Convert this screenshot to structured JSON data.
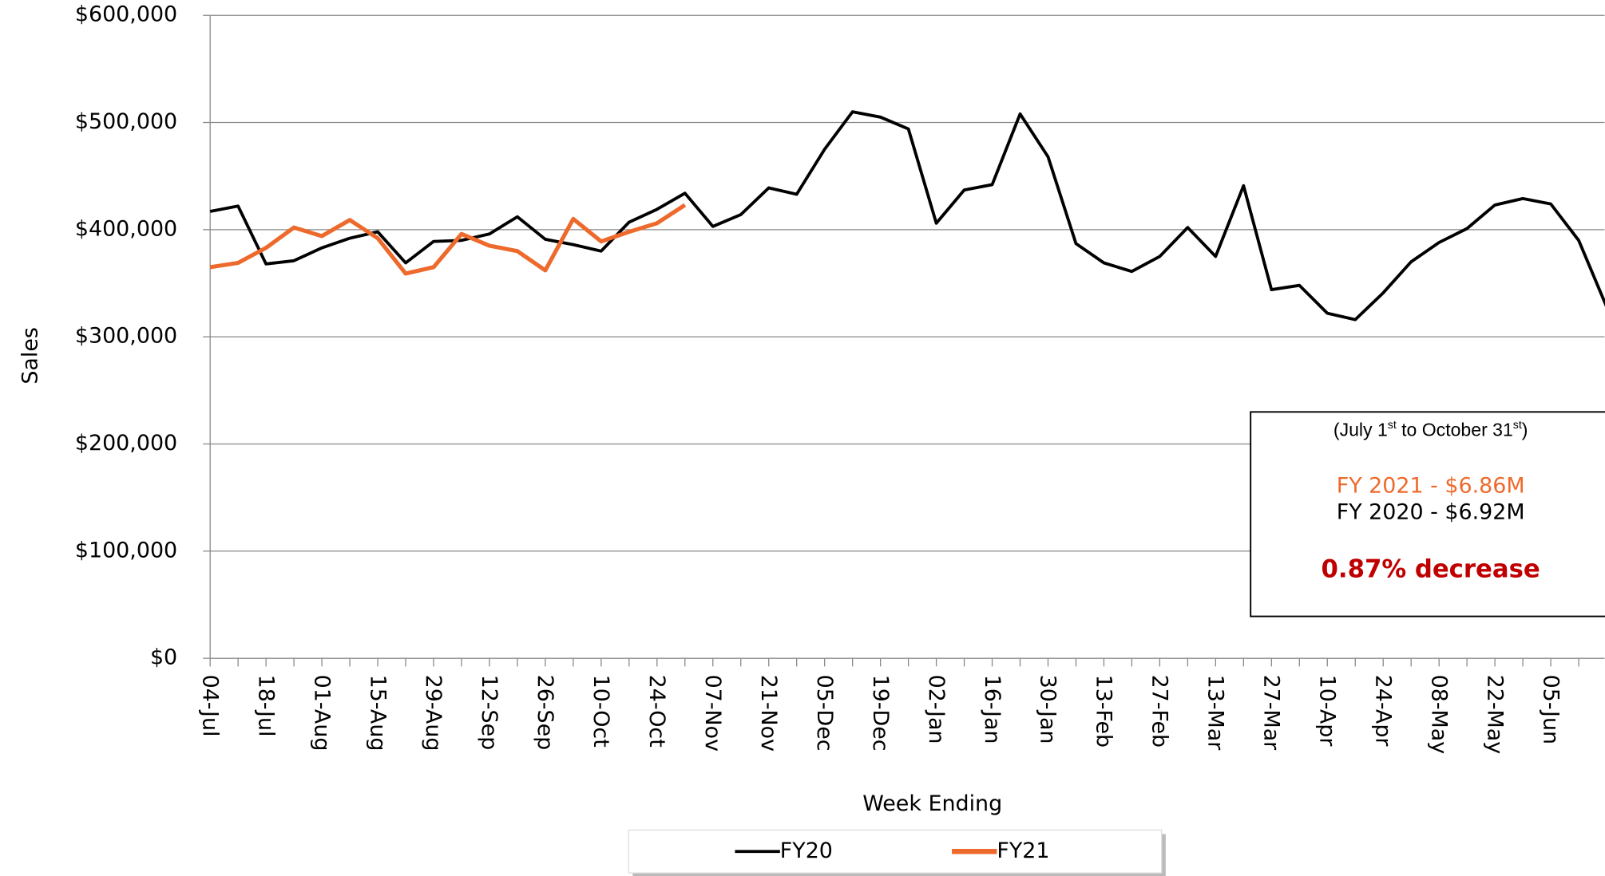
{
  "chart_data": {
    "type": "line",
    "x_label": "Week Ending",
    "y_label": "Sales",
    "categories": [
      "04-Jul",
      null,
      "18-Jul",
      null,
      "01-Aug",
      null,
      "15-Aug",
      null,
      "29-Aug",
      null,
      "12-Sep",
      null,
      "26-Sep",
      null,
      "10-Oct",
      null,
      "24-Oct",
      null,
      "07-Nov",
      null,
      "21-Nov",
      null,
      "05-Dec",
      null,
      "19-Dec",
      null,
      "02-Jan",
      null,
      "16-Jan",
      null,
      "30-Jan",
      null,
      "13-Feb",
      null,
      "27-Feb",
      null,
      "13-Mar",
      null,
      "27-Mar",
      null,
      "10-Apr",
      null,
      "24-Apr",
      null,
      "08-May",
      null,
      "22-May",
      null,
      "05-Jun",
      null,
      null
    ],
    "series": [
      {
        "name": "FY20",
        "color": "#000000",
        "values": [
          417000,
          422000,
          368000,
          371000,
          383000,
          392000,
          398000,
          369000,
          389000,
          390000,
          396000,
          412000,
          391000,
          386000,
          380000,
          407000,
          419000,
          434000,
          403000,
          414000,
          439000,
          433000,
          475000,
          510000,
          505000,
          494000,
          406000,
          437000,
          442000,
          508000,
          468000,
          387000,
          369000,
          361000,
          375000,
          402000,
          375000,
          441000,
          344000,
          348000,
          322000,
          316000,
          341000,
          370000,
          388000,
          401000,
          423000,
          429000,
          424000,
          390000,
          328000
        ]
      },
      {
        "name": "FY21",
        "color": "#ed6a2c",
        "values": [
          365000,
          369000,
          383000,
          402000,
          394000,
          409000,
          392000,
          359000,
          365000,
          396000,
          385000,
          380000,
          362000,
          410000,
          389000,
          398000,
          406000,
          423000,
          null,
          null,
          null,
          null,
          null,
          null,
          null,
          null,
          null,
          null,
          null,
          null,
          null,
          null,
          null,
          null,
          null,
          null,
          null,
          null,
          null,
          null,
          null,
          null,
          null,
          null,
          null,
          null,
          null,
          null,
          null,
          null,
          null
        ]
      }
    ],
    "ylim": [
      0,
      600000
    ],
    "yticks": [
      {
        "value": 0,
        "label": "$0"
      },
      {
        "value": 100000,
        "label": "$100,000"
      },
      {
        "value": 200000,
        "label": "$200,000"
      },
      {
        "value": 300000,
        "label": "$300,000"
      },
      {
        "value": 400000,
        "label": "$400,000"
      },
      {
        "value": 500000,
        "label": "$500,000"
      },
      {
        "value": 600000,
        "label": "$600,000"
      }
    ],
    "grid": true,
    "legend": "bottom",
    "annotation": {
      "period_parts": [
        "(July 1",
        "st",
        " to October 31",
        "st",
        ")"
      ],
      "fy2021": "FY 2021 - $6.86M",
      "fy2020": "FY 2020 - $6.92M",
      "change": "0.87% decrease"
    }
  }
}
